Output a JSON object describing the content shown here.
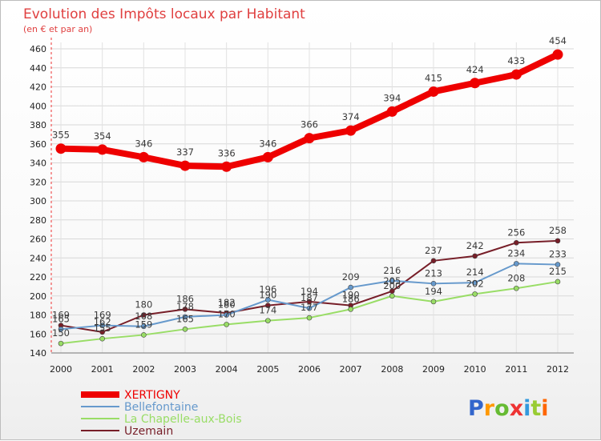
{
  "chart_data": {
    "type": "line",
    "title": "Evolution des Impôts locaux par Habitant",
    "subtitle": "(en € et par an)",
    "xlabel": "",
    "ylabel": "",
    "categories": [
      "2000",
      "2001",
      "2002",
      "2003",
      "2004",
      "2005",
      "2006",
      "2007",
      "2008",
      "2009",
      "2010",
      "2011",
      "2012"
    ],
    "ylim": [
      140,
      460
    ],
    "yticks": [
      140,
      160,
      180,
      200,
      220,
      240,
      260,
      280,
      300,
      320,
      340,
      360,
      380,
      400,
      420,
      440,
      460
    ],
    "grid": true,
    "legend_position": "bottom-left",
    "series": [
      {
        "name": "XERTIGNY",
        "color": "#ee0000",
        "values": [
          355,
          354,
          346,
          337,
          336,
          346,
          366,
          374,
          394,
          415,
          424,
          433,
          454
        ]
      },
      {
        "name": "Bellefontaine",
        "color": "#6699cc",
        "values": [
          165,
          169,
          168,
          178,
          180,
          196,
          187,
          209,
          216,
          213,
          214,
          234,
          233
        ]
      },
      {
        "name": "La Chapelle-aux-Bois",
        "color": "#99dd66",
        "values": [
          150,
          155,
          159,
          165,
          170,
          174,
          177,
          186,
          200,
          194,
          202,
          208,
          215
        ]
      },
      {
        "name": "Uzemain",
        "color": "#771e28",
        "values": [
          169,
          162,
          180,
          186,
          182,
          190,
          194,
          190,
          205,
          237,
          242,
          256,
          258
        ]
      }
    ]
  },
  "brand": {
    "logo_text": "Proxiti",
    "colors": [
      "#3366cc",
      "#ff9900",
      "#66bb33",
      "#ee3333",
      "#3399dd",
      "#99cc33",
      "#ff6600"
    ]
  }
}
